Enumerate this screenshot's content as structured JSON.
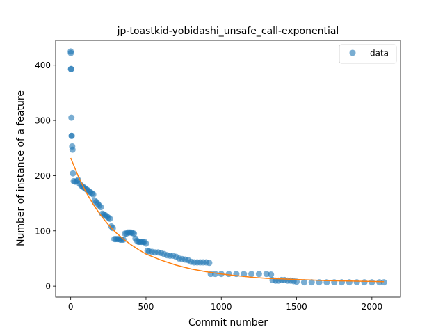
{
  "chart_data": {
    "type": "scatter",
    "title": "jp-toastkid-yobidashi_unsafe_call-exponential",
    "xlabel": "Commit number",
    "ylabel": "Number of instance of a feature",
    "xlim": [
      -100,
      2190
    ],
    "ylim": [
      -20,
      445
    ],
    "xticks": [
      0,
      500,
      1000,
      1500,
      2000
    ],
    "yticks": [
      0,
      100,
      200,
      300,
      400
    ],
    "legend": {
      "position": "top-right",
      "entries": [
        "data"
      ]
    },
    "colors": {
      "data": "#1f77b4",
      "fit": "#ff7f0e"
    },
    "series": [
      {
        "name": "data",
        "kind": "scatter",
        "points": [
          [
            0,
            425
          ],
          [
            1,
            422
          ],
          [
            2,
            393
          ],
          [
            3,
            393
          ],
          [
            5,
            305
          ],
          [
            6,
            272
          ],
          [
            7,
            272
          ],
          [
            10,
            253
          ],
          [
            12,
            247
          ],
          [
            15,
            204
          ],
          [
            20,
            190
          ],
          [
            30,
            189
          ],
          [
            40,
            190
          ],
          [
            50,
            192
          ],
          [
            60,
            185
          ],
          [
            70,
            182
          ],
          [
            80,
            180
          ],
          [
            90,
            178
          ],
          [
            100,
            176
          ],
          [
            110,
            174
          ],
          [
            120,
            172
          ],
          [
            130,
            170
          ],
          [
            140,
            168
          ],
          [
            150,
            166
          ],
          [
            160,
            155
          ],
          [
            170,
            152
          ],
          [
            180,
            149
          ],
          [
            190,
            146
          ],
          [
            200,
            143
          ],
          [
            210,
            131
          ],
          [
            220,
            130
          ],
          [
            230,
            128
          ],
          [
            240,
            126
          ],
          [
            250,
            124
          ],
          [
            260,
            122
          ],
          [
            270,
            108
          ],
          [
            280,
            105
          ],
          [
            290,
            85
          ],
          [
            300,
            85
          ],
          [
            310,
            85
          ],
          [
            320,
            85
          ],
          [
            330,
            84
          ],
          [
            340,
            84
          ],
          [
            350,
            84
          ],
          [
            360,
            95
          ],
          [
            370,
            95
          ],
          [
            380,
            97
          ],
          [
            390,
            97
          ],
          [
            400,
            97
          ],
          [
            410,
            96
          ],
          [
            420,
            95
          ],
          [
            430,
            86
          ],
          [
            440,
            82
          ],
          [
            450,
            80
          ],
          [
            460,
            80
          ],
          [
            470,
            80
          ],
          [
            480,
            80
          ],
          [
            490,
            80
          ],
          [
            500,
            77
          ],
          [
            510,
            64
          ],
          [
            520,
            63
          ],
          [
            540,
            62
          ],
          [
            560,
            61
          ],
          [
            580,
            61
          ],
          [
            600,
            60
          ],
          [
            620,
            58
          ],
          [
            640,
            56
          ],
          [
            660,
            55
          ],
          [
            680,
            55
          ],
          [
            700,
            53
          ],
          [
            720,
            50
          ],
          [
            740,
            49
          ],
          [
            760,
            48
          ],
          [
            780,
            47
          ],
          [
            800,
            44
          ],
          [
            820,
            43
          ],
          [
            840,
            43
          ],
          [
            860,
            43
          ],
          [
            880,
            43
          ],
          [
            900,
            43
          ],
          [
            920,
            42
          ],
          [
            930,
            22
          ],
          [
            960,
            22
          ],
          [
            1000,
            22
          ],
          [
            1050,
            22
          ],
          [
            1100,
            22
          ],
          [
            1150,
            22
          ],
          [
            1200,
            22
          ],
          [
            1250,
            22
          ],
          [
            1300,
            22
          ],
          [
            1330,
            21
          ],
          [
            1340,
            11
          ],
          [
            1360,
            10
          ],
          [
            1380,
            10
          ],
          [
            1400,
            11
          ],
          [
            1420,
            11
          ],
          [
            1440,
            10
          ],
          [
            1460,
            10
          ],
          [
            1480,
            9
          ],
          [
            1500,
            8
          ],
          [
            1550,
            7
          ],
          [
            1600,
            7
          ],
          [
            1650,
            7
          ],
          [
            1700,
            7
          ],
          [
            1750,
            7
          ],
          [
            1800,
            7
          ],
          [
            1850,
            7
          ],
          [
            1900,
            7
          ],
          [
            1950,
            7
          ],
          [
            2000,
            7
          ],
          [
            2050,
            7
          ],
          [
            2080,
            7
          ]
        ]
      },
      {
        "name": "",
        "kind": "line",
        "x": [
          0,
          50,
          100,
          150,
          200,
          250,
          300,
          350,
          400,
          450,
          500,
          600,
          700,
          800,
          900,
          1000,
          1100,
          1200,
          1300,
          1400,
          1500,
          1600,
          1700,
          1800,
          1900,
          2000,
          2080
        ],
        "values": [
          232,
          199,
          171,
          148,
          128,
          111,
          97,
          85,
          75,
          66,
          58,
          47,
          38,
          31,
          26,
          22,
          19,
          16,
          14,
          13,
          12,
          11,
          10,
          9.5,
          9,
          8.5,
          8
        ]
      }
    ]
  }
}
